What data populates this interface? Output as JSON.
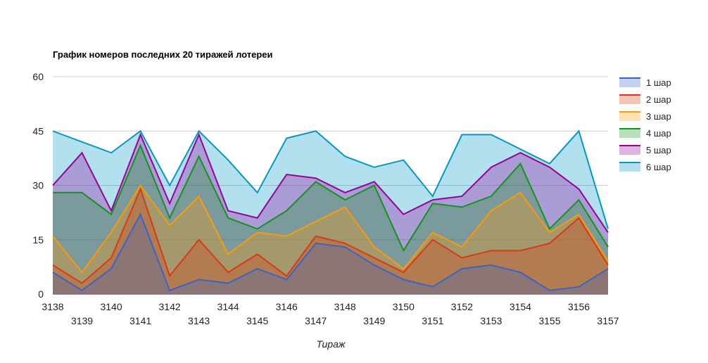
{
  "chart_data": {
    "type": "area",
    "title": "График номеров последних 20 тиражей лотереи",
    "xlabel": "Тираж",
    "ylabel": "",
    "ylim": [
      0,
      60
    ],
    "yticks": [
      "0",
      "15",
      "30",
      "45",
      "60"
    ],
    "categories": [
      "3138",
      "3139",
      "3140",
      "3141",
      "3142",
      "3143",
      "3144",
      "3145",
      "3146",
      "3147",
      "3148",
      "3149",
      "3150",
      "3151",
      "3152",
      "3153",
      "3154",
      "3155",
      "3156",
      "3157"
    ],
    "legend_position": "right",
    "grid": true,
    "series": [
      {
        "name": "1 шар",
        "color": "#3366cc",
        "values": [
          6,
          1,
          7,
          22,
          1,
          4,
          3,
          7,
          4,
          14,
          13,
          8,
          4,
          2,
          7,
          8,
          6,
          1,
          2,
          7
        ]
      },
      {
        "name": "2 шар",
        "color": "#dc3912",
        "values": [
          8,
          3,
          10,
          29,
          5,
          15,
          6,
          11,
          5,
          16,
          14,
          10,
          6,
          15,
          10,
          12,
          12,
          14,
          21,
          8
        ]
      },
      {
        "name": "3 шар",
        "color": "#ff9900",
        "values": [
          16,
          6,
          17,
          30,
          19,
          27,
          11,
          17,
          16,
          20,
          24,
          13,
          7,
          17,
          13,
          23,
          28,
          17,
          22,
          9
        ]
      },
      {
        "name": "4 шар",
        "color": "#109618",
        "values": [
          28,
          28,
          22,
          41,
          21,
          38,
          21,
          18,
          23,
          31,
          26,
          30,
          12,
          25,
          24,
          27,
          36,
          18,
          26,
          13
        ]
      },
      {
        "name": "5 шар",
        "color": "#990099",
        "values": [
          30,
          39,
          23,
          44,
          25,
          44,
          23,
          21,
          33,
          32,
          28,
          31,
          22,
          26,
          27,
          35,
          39,
          35,
          29,
          17
        ]
      },
      {
        "name": "6 шар",
        "color": "#0099c6",
        "values": [
          45,
          42,
          39,
          45,
          30,
          45,
          37,
          28,
          43,
          45,
          38,
          35,
          37,
          27,
          44,
          44,
          40,
          36,
          45,
          18
        ]
      }
    ]
  }
}
